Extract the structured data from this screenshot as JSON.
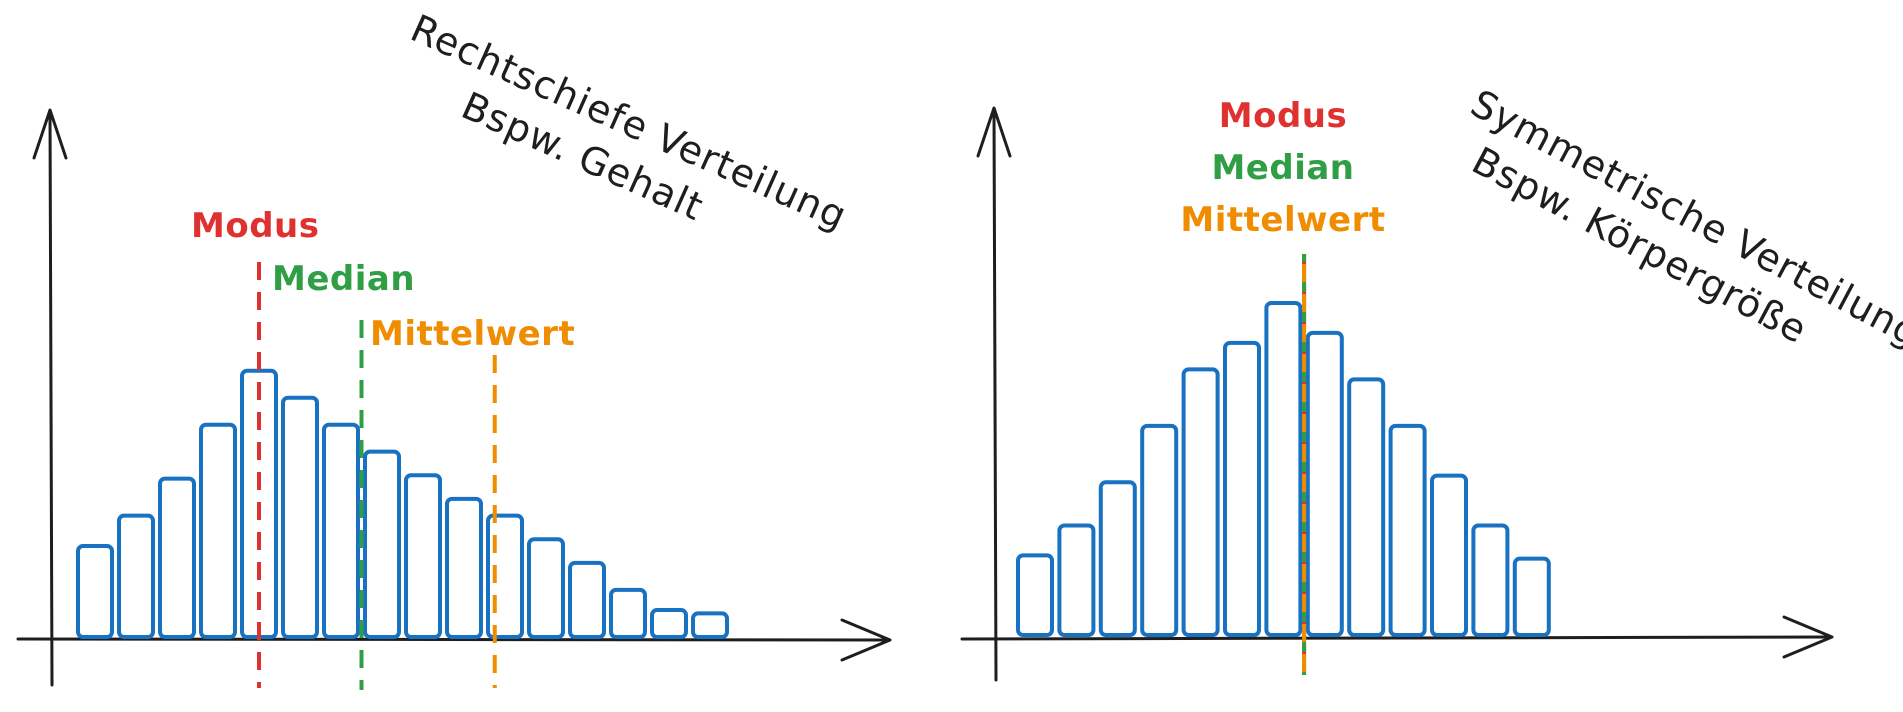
{
  "colors": {
    "axis": "#1e1e1e",
    "bar": "#1971c2",
    "modus": "#e03131",
    "median": "#2f9e44",
    "mittelwert": "#f08c00"
  },
  "chart_data": [
    {
      "type": "bar",
      "title_line1": "Rechtschiefe Verteilung",
      "title_line2": "Bspw. Gehalt",
      "values": [
        27,
        36,
        47,
        63,
        79,
        71,
        63,
        55,
        48,
        41,
        36,
        29,
        22,
        14,
        8,
        7
      ],
      "modus": {
        "label": "Modus",
        "at": 4
      },
      "median": {
        "label": "Median",
        "at": 6.5
      },
      "mittelwert": {
        "label": "Mittelwert",
        "at": 9.75
      }
    },
    {
      "type": "bar",
      "title_line1": "Symmetrische Verteilung",
      "title_line2": "Bspw. Körpergröße",
      "values": [
        24,
        33,
        46,
        63,
        80,
        88,
        100,
        91,
        77,
        63,
        48,
        33,
        23
      ],
      "modus": {
        "label": "Modus",
        "at": 6.5
      },
      "median": {
        "label": "Median",
        "at": 6.5
      },
      "mittelwert": {
        "label": "Mittelwert",
        "at": 6.5
      }
    }
  ]
}
